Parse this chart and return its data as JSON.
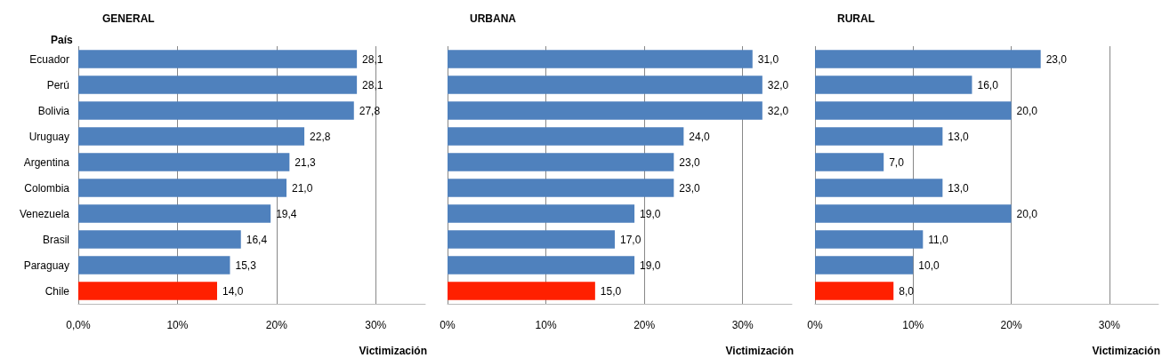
{
  "chart_data": [
    {
      "type": "bar",
      "orientation": "horizontal",
      "title": "GENERAL",
      "ylabel": "País",
      "xlabel": "Victimización",
      "categories": [
        "Ecuador",
        "Perú",
        "Bolivia",
        "Uruguay",
        "Argentina",
        "Colombia",
        "Venezuela",
        "Brasil",
        "Paraguay",
        "Chile"
      ],
      "values": [
        28.1,
        28.1,
        27.8,
        22.8,
        21.3,
        21.0,
        19.4,
        16.4,
        15.3,
        14.0
      ],
      "value_labels": [
        "28,1",
        "28,1",
        "27,8",
        "22,8",
        "21,3",
        "21,0",
        "19,4",
        "16,4",
        "15,3",
        "14,0"
      ],
      "colors": [
        "#4f81bd",
        "#4f81bd",
        "#4f81bd",
        "#4f81bd",
        "#4f81bd",
        "#4f81bd",
        "#4f81bd",
        "#4f81bd",
        "#4f81bd",
        "#ff2000"
      ],
      "xlim": [
        0,
        35
      ],
      "xticks": [
        {
          "value": 0,
          "label": "0,0%"
        },
        {
          "value": 10,
          "label": "10%"
        },
        {
          "value": 20,
          "label": "20%"
        },
        {
          "value": 30,
          "label": "30%"
        }
      ],
      "grid": "x"
    },
    {
      "type": "bar",
      "orientation": "horizontal",
      "title": "URBANA",
      "xlabel": "Victimización",
      "categories": [
        null,
        null,
        null,
        null,
        null,
        null,
        null,
        null,
        null,
        null
      ],
      "values": [
        31.0,
        32.0,
        32.0,
        24.0,
        23.0,
        23.0,
        19.0,
        17.0,
        19.0,
        15.0
      ],
      "value_labels": [
        "31,0",
        "32,0",
        "32,0",
        "24,0",
        "23,0",
        "23,0",
        "19,0",
        "17,0",
        "19,0",
        "15,0"
      ],
      "colors": [
        "#4f81bd",
        "#4f81bd",
        "#4f81bd",
        "#4f81bd",
        "#4f81bd",
        "#4f81bd",
        "#4f81bd",
        "#4f81bd",
        "#4f81bd",
        "#ff2000"
      ],
      "xlim": [
        0,
        35
      ],
      "xticks": [
        {
          "value": 0,
          "label": "0%"
        },
        {
          "value": 10,
          "label": "10%"
        },
        {
          "value": 20,
          "label": "20%"
        },
        {
          "value": 30,
          "label": "30%"
        }
      ],
      "grid": "x"
    },
    {
      "type": "bar",
      "orientation": "horizontal",
      "title": "RURAL",
      "xlabel": "Victimización",
      "categories": [
        null,
        null,
        null,
        null,
        null,
        null,
        null,
        null,
        null,
        null
      ],
      "values": [
        23.0,
        16.0,
        20.0,
        13.0,
        7.0,
        13.0,
        20.0,
        11.0,
        10.0,
        8.0
      ],
      "value_labels": [
        "23,0",
        "16,0",
        "20,0",
        "13,0",
        "7,0",
        "13,0",
        "20,0",
        "11,0",
        "10,0",
        "8,0"
      ],
      "colors": [
        "#4f81bd",
        "#4f81bd",
        "#4f81bd",
        "#4f81bd",
        "#4f81bd",
        "#4f81bd",
        "#4f81bd",
        "#4f81bd",
        "#4f81bd",
        "#ff2000"
      ],
      "xlim": [
        0,
        35
      ],
      "xticks": [
        {
          "value": 0,
          "label": "0%"
        },
        {
          "value": 10,
          "label": "10%"
        },
        {
          "value": 20,
          "label": "20%"
        },
        {
          "value": 30,
          "label": "30%"
        }
      ],
      "grid": "x"
    }
  ]
}
